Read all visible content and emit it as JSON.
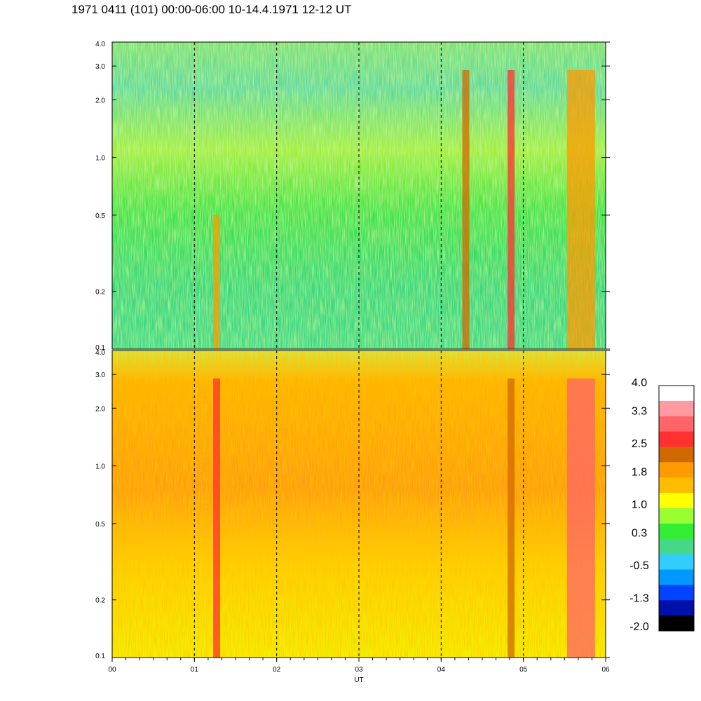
{
  "title": "1971 0411 (101) 00:00-06:00 10-14.4.1971  12-12 UT",
  "chart_data": {
    "type": "heatmap",
    "title": "1971 0411 (101) 00:00-06:00 10-14.4.1971  12-12 UT",
    "xlabel": "UT",
    "ylabel": "",
    "x_ticks": [
      "00",
      "01",
      "02",
      "03",
      "04",
      "05",
      "06"
    ],
    "xlim": [
      0,
      6
    ],
    "y_scale": "log",
    "ylim": [
      0.1,
      4.0
    ],
    "y_ticks": [
      {
        "label": "0.1",
        "value": 0.1
      },
      {
        "label": "0.2",
        "value": 0.2
      },
      {
        "label": "0.5",
        "value": 0.5
      },
      {
        "label": "1.0",
        "value": 1.0
      },
      {
        "label": "2.0",
        "value": 2.0
      },
      {
        "label": "3.0",
        "value": 3.0
      },
      {
        "label": "4.0",
        "value": 4.0
      }
    ],
    "panels": [
      {
        "name": "upper",
        "dominant_value": 0.3,
        "bursts_hours": [
          1.27,
          4.3,
          4.85,
          5.7
        ]
      },
      {
        "name": "lower",
        "dominant_value": 1.5,
        "bursts_hours": [
          1.27,
          4.85,
          5.7
        ]
      }
    ],
    "colorbar": {
      "levels": [
        4.0,
        3.3,
        2.5,
        1.8,
        1.0,
        0.3,
        -0.5,
        -1.3,
        -2.0
      ],
      "labels": [
        "4.0",
        "3.3",
        "2.5",
        "1.8",
        "1.0",
        "0.3",
        "-0.5",
        "-1.3",
        "-2.0"
      ],
      "colors": [
        "#ffffff",
        "#ff9aa0",
        "#ff6468",
        "#ff3030",
        "#d06a00",
        "#ff9a00",
        "#ffbc00",
        "#ffff00",
        "#99ff33",
        "#33ee33",
        "#44d888",
        "#33ccff",
        "#0099ff",
        "#0044ff",
        "#0011aa",
        "#000000"
      ]
    },
    "grid": "dashed vertical lines at each hour"
  }
}
